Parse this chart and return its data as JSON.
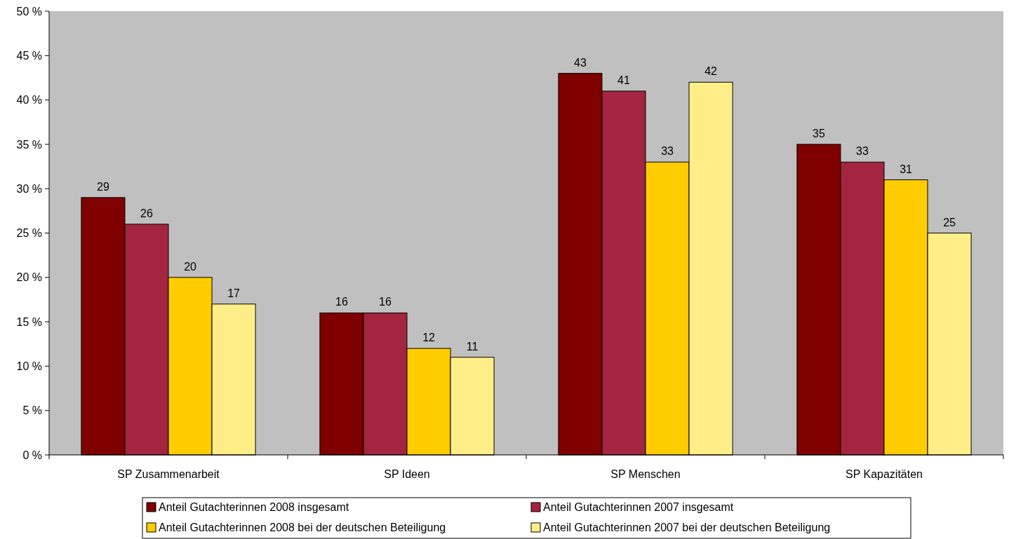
{
  "chart_data": {
    "type": "bar",
    "categories": [
      "SP Zusammenarbeit",
      "SP Ideen",
      "SP Menschen",
      "SP Kapazitäten"
    ],
    "series": [
      {
        "name": "Anteil Gutachterinnen 2008 insgesamt",
        "color": "#800000",
        "values": [
          29,
          16,
          43,
          35
        ]
      },
      {
        "name": "Anteil Gutachterinnen 2007 insgesamt",
        "color": "#a3253f",
        "values": [
          26,
          16,
          41,
          33
        ]
      },
      {
        "name": "Anteil Gutachterinnen 2008 bei der deutschen Beteiligung",
        "color": "#ffcc00",
        "values": [
          20,
          12,
          33,
          31
        ]
      },
      {
        "name": "Anteil Gutachterinnen 2007 bei der deutschen Beteiligung",
        "color": "#ffee88",
        "values": [
          17,
          11,
          42,
          25
        ]
      }
    ],
    "ylim": [
      0,
      50
    ],
    "yticks": [
      {
        "value": 0,
        "label": "0 %"
      },
      {
        "value": 5,
        "label": "5 %"
      },
      {
        "value": 10,
        "label": "10 %"
      },
      {
        "value": 15,
        "label": "15 %"
      },
      {
        "value": 20,
        "label": "20 %"
      },
      {
        "value": 25,
        "label": "25 %"
      },
      {
        "value": 30,
        "label": "30 %"
      },
      {
        "value": 35,
        "label": "35 %"
      },
      {
        "value": 40,
        "label": "40 %"
      },
      {
        "value": 45,
        "label": "45 %"
      },
      {
        "value": 50,
        "label": "50 %"
      }
    ],
    "grid": false,
    "data_labels": true,
    "legend": "bottom"
  }
}
